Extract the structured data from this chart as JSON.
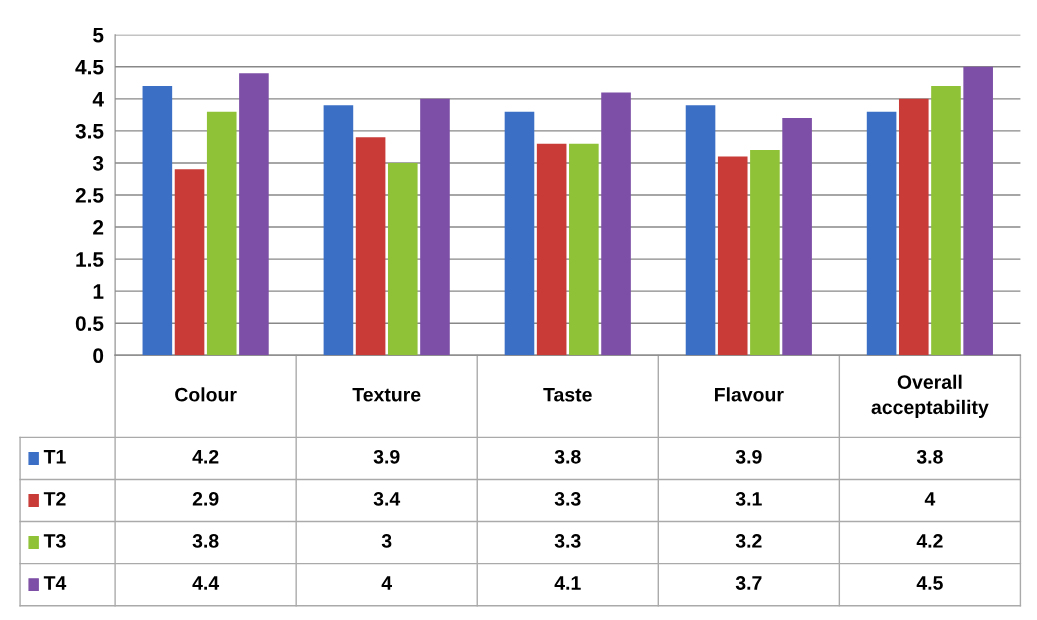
{
  "chart_data": {
    "type": "bar",
    "categories": [
      "Colour",
      "Texture",
      "Taste",
      "Flavour",
      "Overall acceptability"
    ],
    "series": [
      {
        "name": "T1",
        "color": "#3b6fc6",
        "values": [
          4.2,
          3.9,
          3.8,
          3.9,
          3.8
        ]
      },
      {
        "name": "T2",
        "color": "#c83b37",
        "values": [
          2.9,
          3.4,
          3.3,
          3.1,
          4
        ]
      },
      {
        "name": "T3",
        "color": "#8fc236",
        "values": [
          3.8,
          3,
          3.3,
          3.2,
          4.2
        ]
      },
      {
        "name": "T4",
        "color": "#7d4fa6",
        "values": [
          4.4,
          4,
          4.1,
          3.7,
          4.5
        ]
      }
    ],
    "ylim": [
      0,
      5
    ],
    "yticks": [
      0,
      0.5,
      1,
      1.5,
      2,
      2.5,
      3,
      3.5,
      4,
      4.5,
      5
    ],
    "grid": "y",
    "data_labels": true,
    "legend": "bottom left"
  }
}
